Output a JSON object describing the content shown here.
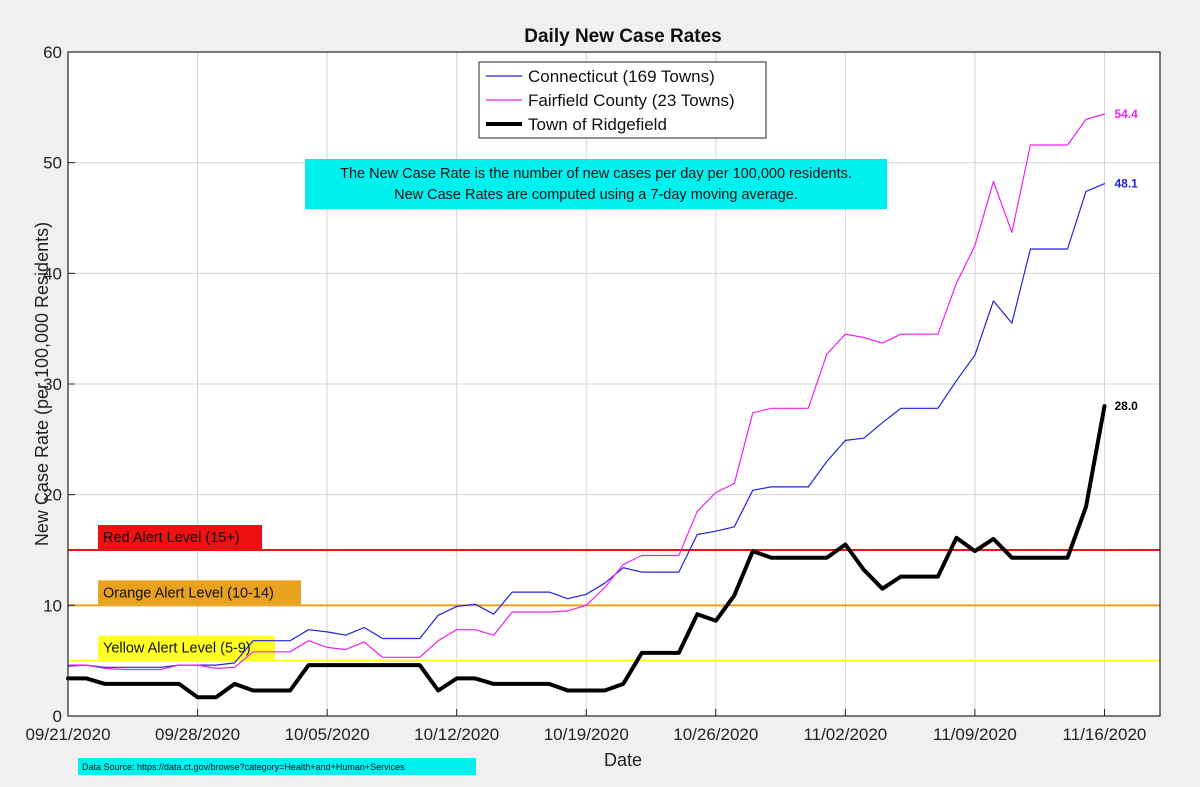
{
  "chart_data": {
    "type": "line",
    "title": "Daily New Case Rates",
    "xlabel": "Date",
    "ylabel": "New Case Rate (per 100,000 Residents)",
    "ylim": [
      0,
      60
    ],
    "yticks": [
      0,
      10,
      20,
      30,
      40,
      50,
      60
    ],
    "xlim": [
      "09/21/2020",
      "11/19/2020"
    ],
    "xticks": [
      "09/21/2020",
      "09/28/2020",
      "10/05/2020",
      "10/12/2020",
      "10/19/2020",
      "10/26/2020",
      "11/02/2020",
      "11/09/2020",
      "11/16/2020"
    ],
    "grid": true,
    "legend_position": "top-center",
    "note": [
      "The New Case Rate is the number of new cases per day per 100,000 residents.",
      "New Case Rates are computed using a 7-day moving average."
    ],
    "note_color": "#00f0f0",
    "source": "Data Source: https://data.ct.gov/browse?category=Health+and+Human+Services",
    "thresholds": [
      {
        "label": "Red Alert Level (15+)",
        "value": 15,
        "color": "#ee1111"
      },
      {
        "label": "Orange Alert Level (10-14)",
        "value": 10,
        "color": "#e8a21e"
      },
      {
        "label": "Yellow Alert Level (5-9)",
        "value": 5,
        "color": "#ffff22"
      }
    ],
    "x": [
      "09/21/2020",
      "09/22/2020",
      "09/23/2020",
      "09/24/2020",
      "09/25/2020",
      "09/26/2020",
      "09/27/2020",
      "09/28/2020",
      "09/29/2020",
      "09/30/2020",
      "10/01/2020",
      "10/02/2020",
      "10/03/2020",
      "10/04/2020",
      "10/05/2020",
      "10/06/2020",
      "10/07/2020",
      "10/08/2020",
      "10/09/2020",
      "10/10/2020",
      "10/11/2020",
      "10/12/2020",
      "10/13/2020",
      "10/14/2020",
      "10/15/2020",
      "10/16/2020",
      "10/17/2020",
      "10/18/2020",
      "10/19/2020",
      "10/20/2020",
      "10/21/2020",
      "10/22/2020",
      "10/23/2020",
      "10/24/2020",
      "10/25/2020",
      "10/26/2020",
      "10/27/2020",
      "10/28/2020",
      "10/29/2020",
      "10/30/2020",
      "10/31/2020",
      "11/01/2020",
      "11/02/2020",
      "11/03/2020",
      "11/04/2020",
      "11/05/2020",
      "11/06/2020",
      "11/07/2020",
      "11/08/2020",
      "11/09/2020",
      "11/10/2020",
      "11/11/2020",
      "11/12/2020",
      "11/13/2020",
      "11/14/2020",
      "11/15/2020",
      "11/16/2020"
    ],
    "series": [
      {
        "name": "Connecticut (169 Towns)",
        "color": "#2323dd",
        "end_label": "48.1",
        "values": [
          4.5,
          4.6,
          4.4,
          4.4,
          4.4,
          4.4,
          4.6,
          4.6,
          4.6,
          4.8,
          6.8,
          6.8,
          6.8,
          7.8,
          7.6,
          7.3,
          8.0,
          7.0,
          7.0,
          7.0,
          9.1,
          9.9,
          10.1,
          9.2,
          11.2,
          11.2,
          11.2,
          10.6,
          11.0,
          12.0,
          13.4,
          13.0,
          13.0,
          13.0,
          16.4,
          16.7,
          17.1,
          20.4,
          20.7,
          20.7,
          20.7,
          23.0,
          24.9,
          25.1,
          26.5,
          27.8,
          27.8,
          27.8,
          30.3,
          32.6,
          37.5,
          35.5,
          42.2,
          42.2,
          42.2,
          47.4,
          48.1
        ]
      },
      {
        "name": "Fairfield County (23 Towns)",
        "color": "#ee22ee",
        "end_label": "54.4",
        "values": [
          4.6,
          4.6,
          4.3,
          4.2,
          4.2,
          4.2,
          4.6,
          4.6,
          4.3,
          4.4,
          5.8,
          5.8,
          5.8,
          6.8,
          6.2,
          6.0,
          6.7,
          5.3,
          5.3,
          5.3,
          6.8,
          7.8,
          7.8,
          7.3,
          9.4,
          9.4,
          9.4,
          9.5,
          10.0,
          11.6,
          13.7,
          14.5,
          14.5,
          14.5,
          18.5,
          20.2,
          21.0,
          27.4,
          27.8,
          27.8,
          27.8,
          32.7,
          34.5,
          34.2,
          33.7,
          34.5,
          34.5,
          34.5,
          39.1,
          42.5,
          48.3,
          43.7,
          51.6,
          51.6,
          51.6,
          53.9,
          54.4
        ]
      },
      {
        "name": "Town of Ridgefield",
        "color": "#000000",
        "end_label": "28.0",
        "values": [
          3.4,
          3.4,
          2.9,
          2.9,
          2.9,
          2.9,
          2.9,
          1.7,
          1.7,
          2.9,
          2.3,
          2.3,
          2.3,
          4.6,
          4.6,
          4.6,
          4.6,
          4.6,
          4.6,
          4.6,
          2.3,
          3.4,
          3.4,
          2.9,
          2.9,
          2.9,
          2.9,
          2.3,
          2.3,
          2.3,
          2.9,
          5.7,
          5.7,
          5.7,
          9.2,
          8.6,
          10.9,
          14.9,
          14.3,
          14.3,
          14.3,
          14.3,
          15.5,
          13.2,
          11.5,
          12.6,
          12.6,
          12.6,
          16.1,
          14.9,
          16.0,
          14.3,
          14.3,
          14.3,
          14.3,
          18.9,
          28.0
        ]
      }
    ]
  }
}
